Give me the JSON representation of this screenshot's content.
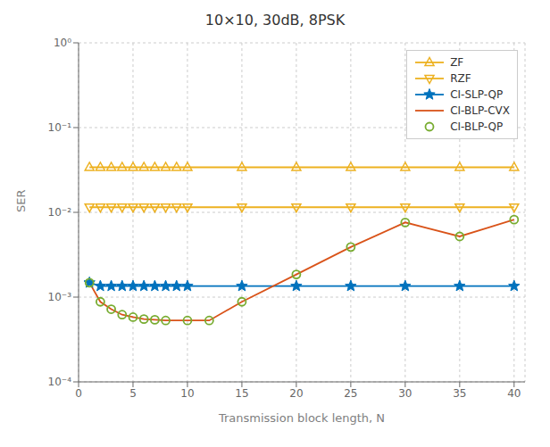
{
  "chart_data": {
    "type": "line",
    "title": "10×10, 30dB, 8PSK",
    "xlabel": "Transmission block length, N",
    "ylabel": "SER",
    "xlim": [
      0,
      41
    ],
    "ylim": [
      0.0001,
      1
    ],
    "xticks": [
      0,
      5,
      10,
      15,
      20,
      25,
      30,
      35,
      40
    ],
    "yticks": [
      {
        "value": 0.0001,
        "label": "10⁻⁴"
      },
      {
        "value": 0.001,
        "label": "10⁻³"
      },
      {
        "value": 0.01,
        "label": "10⁻²"
      },
      {
        "value": 0.1,
        "label": "10⁻¹"
      },
      {
        "value": 1,
        "label": "10⁰"
      }
    ],
    "log": "y",
    "grid": true,
    "legend": "upper right",
    "series": [
      {
        "name": "ZF",
        "color": "#EDB120",
        "marker": "triangle-up",
        "line_style": "solid",
        "x": [
          1,
          2,
          3,
          4,
          5,
          6,
          7,
          8,
          9,
          10,
          15,
          20,
          25,
          30,
          35,
          40
        ],
        "values": [
          0.034,
          0.034,
          0.034,
          0.034,
          0.034,
          0.034,
          0.034,
          0.034,
          0.034,
          0.034,
          0.034,
          0.034,
          0.034,
          0.034,
          0.034,
          0.034
        ]
      },
      {
        "name": "RZF",
        "color": "#EDB120",
        "marker": "triangle-down",
        "line_style": "solid",
        "x": [
          1,
          2,
          3,
          4,
          5,
          6,
          7,
          8,
          9,
          10,
          15,
          20,
          25,
          30,
          35,
          40
        ],
        "values": [
          0.0115,
          0.0115,
          0.0115,
          0.0115,
          0.0115,
          0.0115,
          0.0115,
          0.0115,
          0.0115,
          0.0115,
          0.0115,
          0.0115,
          0.0115,
          0.0115,
          0.0115,
          0.0115
        ]
      },
      {
        "name": "CI-SLP-QP",
        "color": "#0072BD",
        "marker": "star",
        "line_style": "solid",
        "x": [
          1,
          2,
          3,
          4,
          5,
          6,
          7,
          8,
          9,
          10,
          15,
          20,
          25,
          30,
          35,
          40
        ],
        "values": [
          0.00148,
          0.00135,
          0.00135,
          0.00135,
          0.00135,
          0.00135,
          0.00135,
          0.00135,
          0.00135,
          0.00135,
          0.00135,
          0.00135,
          0.00135,
          0.00135,
          0.00135,
          0.00135
        ]
      },
      {
        "name": "CI-BLP-CVX",
        "color": "#D95319",
        "marker": "none",
        "line_style": "solid",
        "x": [
          1,
          2,
          3,
          4,
          5,
          6,
          7,
          8,
          10,
          12,
          15,
          20,
          25,
          30,
          35,
          40
        ],
        "values": [
          0.00148,
          0.00088,
          0.00072,
          0.00062,
          0.00058,
          0.00055,
          0.00054,
          0.00053,
          0.00053,
          0.00053,
          0.00088,
          0.00185,
          0.0039,
          0.0076,
          0.0052,
          0.0082
        ]
      },
      {
        "name": "CI-BLP-QP",
        "color": "#77AC30",
        "marker": "circle",
        "line_style": "none",
        "x": [
          1,
          2,
          3,
          4,
          5,
          6,
          7,
          8,
          10,
          12,
          15,
          20,
          25,
          30,
          35,
          40
        ],
        "values": [
          0.00148,
          0.00088,
          0.00072,
          0.00062,
          0.00058,
          0.00055,
          0.00054,
          0.00053,
          0.00053,
          0.00053,
          0.00088,
          0.00185,
          0.0039,
          0.0076,
          0.0052,
          0.0082
        ]
      }
    ]
  }
}
